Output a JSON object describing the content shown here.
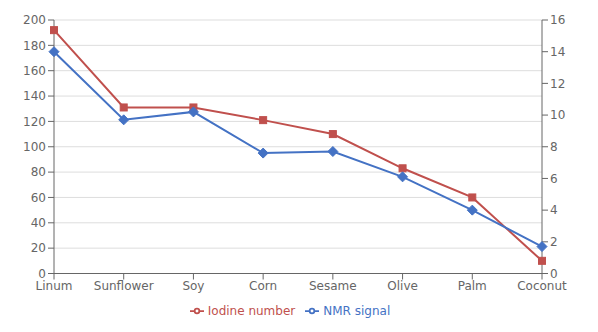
{
  "chart_data": {
    "type": "line",
    "categories": [
      "Linum",
      "Sunflower",
      "Soy",
      "Corn",
      "Sesame",
      "Olive",
      "Palm",
      "Coconut"
    ],
    "series": [
      {
        "name": "Iodine number",
        "color": "#C0504D",
        "marker": "square",
        "values": [
          192,
          131,
          131,
          121,
          110,
          83,
          60,
          10
        ]
      },
      {
        "name": "NMR signal",
        "color": "#4472C4",
        "marker": "diamond",
        "axis": "y2",
        "values": [
          14.0,
          9.7,
          10.2,
          7.6,
          7.7,
          6.1,
          4.0,
          1.7
        ]
      }
    ],
    "ylim": [
      0,
      200
    ],
    "yticks": [
      0,
      20,
      40,
      60,
      80,
      100,
      120,
      140,
      160,
      180,
      200
    ],
    "y2lim": [
      0,
      16
    ],
    "y2ticks": [
      0,
      2,
      4,
      6,
      8,
      10,
      12,
      14,
      16
    ],
    "grid": true,
    "legend": "bottom"
  }
}
